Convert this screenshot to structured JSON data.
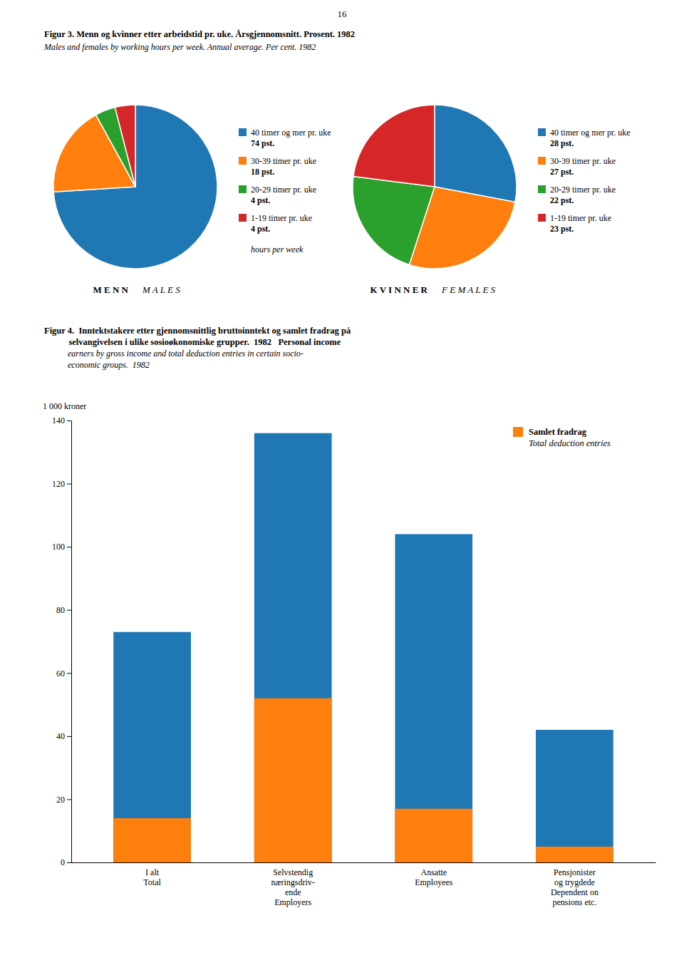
{
  "page_number": "16",
  "chart_data": [
    {
      "type": "pie",
      "title": "Figur 3.  Menn og kvinner etter arbeidstid pr. uke.  Årsgjennomsnitt.  Prosent.  1982",
      "subtitle": "Males and females by working hours per week.  Annual average.  Per cent.  1982",
      "categories": [
        "40 timer og mer pr. uke",
        "30-39 timer pr. uke",
        "20-29 timer pr. uke",
        "1-19 timer pr. uke"
      ],
      "values": [
        74,
        18,
        4,
        4
      ],
      "value_labels": [
        "74 pst.",
        "18 pst.",
        "4 pst.",
        "4 pst."
      ],
      "data_labels": true,
      "annotations": [
        "M E N N",
        "M A L E S",
        "hours per week"
      ]
    },
    {
      "type": "pie",
      "categories": [
        "40 timer og mer pr. uke",
        "30-39 timer pr. uke",
        "20-29 timer pr. uke",
        "1-19 timer pr. uke"
      ],
      "values": [
        28,
        27,
        22,
        23
      ],
      "value_labels": [
        "28 pst.",
        "27 pst.",
        "22 pst.",
        "23 pst."
      ],
      "data_labels": true,
      "annotations": [
        "K V I N N E R",
        "F E M A L E S"
      ]
    },
    {
      "type": "bar",
      "title": "Figur 4.  Inntektstakere etter gjennomsnittlig bruttoinntekt og samlet fradrag på\n           selvangivelsen i ulike sosioøkonomiske grupper.  1982   Personal income",
      "subtitle": "           earners by gross income and total deduction entries in certain socio-\n           economic groups.  1982",
      "ylabel": "1 000 kroner",
      "categories": [
        "I alt\nTotal",
        "Selvstendig\nnæringsdriv-\nende\nEmployers",
        "Ansatte\nEmployees",
        "Pensjonister\nog trygdede\nDependent on\npensions etc."
      ],
      "series": [
        {
          "values": [
            73,
            136,
            104,
            42
          ]
        },
        {
          "name": "Samlet fradrag\nTotal deduction entries",
          "values": [
            14,
            52,
            17,
            5
          ]
        }
      ],
      "stacked": false,
      "grid": false,
      "legend": "upper right",
      "ylim": [
        0,
        140
      ],
      "yticks": [
        0,
        20,
        40,
        60,
        80,
        100,
        120,
        140
      ]
    }
  ]
}
